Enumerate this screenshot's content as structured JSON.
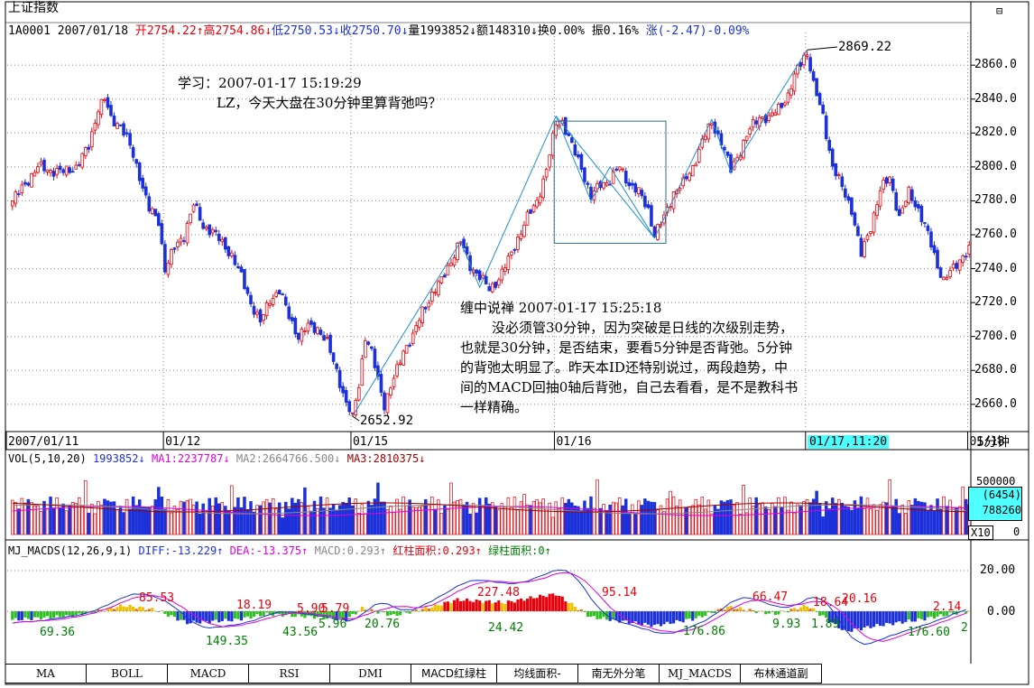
{
  "header": {
    "title": "上证指数",
    "code": "1A0001",
    "date": "2007/01/18",
    "open": "开2754.22↑",
    "high": "高2754.86↓",
    "low": "低2750.53↓",
    "close": "收2750.70↓",
    "volume": "量1993852↓",
    "amount": "额148310↓",
    "turnover": "换0.00%",
    "amplitude": "振0.16%",
    "change": "涨(-2.47)-0.09%"
  },
  "price_axis": [
    "2860.0",
    "2840.0",
    "2820.0",
    "2800.0",
    "2780.0",
    "2760.0",
    "2740.0",
    "2720.0",
    "2700.0",
    "2680.0",
    "2660.0"
  ],
  "date_axis": [
    "2007/01/11",
    "01/12",
    "01/15",
    "01/16",
    "01/17",
    "01/17,11:20",
    "01/18"
  ],
  "period_label": "5分钟",
  "annotations": {
    "max_label": "2869.22",
    "min_label": "2652.92",
    "question_line1": "学习：2007-01-17 15:19:29",
    "question_line2": "LZ，今天大盘在30分钟里算背弛吗？",
    "answer_title": "缠中说禅 2007-01-17 15:25:18",
    "answer_line1": "没必须管30分钟，因为突破是日线的次级别走势，",
    "answer_line2": "也就是30分钟，是否结束，要看5分钟是否背弛。5分钟",
    "answer_line3": "的背弛太明显了。昨天本ID还特别说过，两段趋势，中",
    "answer_line4": "间的MACD回抽0轴后背弛，自己去看看，是不是教科书",
    "answer_line5": "一样精确。"
  },
  "vol_panel": {
    "label": "VOL(5,10,20)",
    "vol": "1993852↓",
    "ma1": "MA1:2237787↓",
    "ma2": "MA2:2664766.500↓",
    "ma3": "MA3:2810375↓",
    "axis_top": "500000",
    "axis_box1": "(6454)",
    "axis_box2": "788260",
    "axis_box3": "X10",
    "axis_zero": "0"
  },
  "macd_panel": {
    "label": "MJ_MACDS(12,26,9,1)",
    "diff": "DIFF:-13.229↑",
    "dea": "DEA:-13.375↑",
    "macd": "MACD:0.293↑",
    "red_area": "红柱面积:0.293↑",
    "green_area": "绿柱面积:0↑",
    "axis_top": "20.00",
    "axis_zero": "0.00",
    "red_labels": [
      "85.53",
      "18.19",
      "5.90",
      "5.79",
      "227.48",
      "95.14",
      "66.47",
      "18.64",
      "20.16",
      "2.14"
    ],
    "green_labels": [
      "69.36",
      "149.35",
      "43.56",
      "5.96",
      "20.76",
      "24.42",
      "176.86",
      "9.93",
      "1.89",
      "176.60",
      "2"
    ]
  },
  "tabs": [
    "MA",
    "BOLL",
    "MACD",
    "RSI",
    "DMI",
    "MACD红绿柱",
    "均线面积-",
    "南无外分笔",
    "MJ_MACDS",
    "布林通道副"
  ],
  "chart_data": {
    "type": "candlestick",
    "title": "上证指数",
    "xlabel": "",
    "ylabel": "",
    "ylim": [
      2645,
      2875
    ],
    "day_labels": [
      "2007/01/11",
      "01/12",
      "01/15",
      "01/16",
      "01/17",
      "01/18"
    ],
    "close_path": [
      [
        0,
        2780
      ],
      [
        4,
        2790
      ],
      [
        8,
        2800
      ],
      [
        12,
        2798
      ],
      [
        16,
        2797
      ],
      [
        20,
        2800
      ],
      [
        24,
        2812
      ],
      [
        27,
        2835
      ],
      [
        29,
        2840
      ],
      [
        31,
        2828
      ],
      [
        34,
        2825
      ],
      [
        37,
        2812
      ],
      [
        40,
        2795
      ],
      [
        43,
        2775
      ],
      [
        46,
        2768
      ],
      [
        48,
        2740
      ],
      [
        51,
        2752
      ],
      [
        54,
        2760
      ],
      [
        57,
        2778
      ],
      [
        60,
        2765
      ],
      [
        63,
        2762
      ],
      [
        66,
        2755
      ],
      [
        69,
        2748
      ],
      [
        72,
        2735
      ],
      [
        75,
        2720
      ],
      [
        78,
        2708
      ],
      [
        81,
        2722
      ],
      [
        84,
        2727
      ],
      [
        87,
        2712
      ],
      [
        90,
        2700
      ],
      [
        93,
        2706
      ],
      [
        96,
        2705
      ],
      [
        99,
        2696
      ],
      [
        102,
        2680
      ],
      [
        105,
        2660
      ],
      [
        107,
        2653
      ],
      [
        109,
        2672
      ],
      [
        111,
        2700
      ],
      [
        113,
        2690
      ],
      [
        115,
        2675
      ],
      [
        117,
        2660
      ],
      [
        119,
        2670
      ],
      [
        121,
        2680
      ],
      [
        123,
        2692
      ],
      [
        126,
        2700
      ],
      [
        129,
        2715
      ],
      [
        132,
        2725
      ],
      [
        135,
        2733
      ],
      [
        138,
        2745
      ],
      [
        141,
        2756
      ],
      [
        144,
        2742
      ],
      [
        147,
        2735
      ],
      [
        150,
        2728
      ],
      [
        153,
        2734
      ],
      [
        156,
        2745
      ],
      [
        159,
        2758
      ],
      [
        162,
        2770
      ],
      [
        165,
        2780
      ],
      [
        168,
        2798
      ],
      [
        171,
        2826
      ],
      [
        173,
        2827
      ],
      [
        176,
        2812
      ],
      [
        179,
        2800
      ],
      [
        182,
        2782
      ],
      [
        185,
        2790
      ],
      [
        188,
        2792
      ],
      [
        191,
        2800
      ],
      [
        194,
        2790
      ],
      [
        197,
        2785
      ],
      [
        200,
        2775
      ],
      [
        202,
        2760
      ],
      [
        205,
        2770
      ],
      [
        208,
        2785
      ],
      [
        211,
        2790
      ],
      [
        214,
        2800
      ],
      [
        217,
        2815
      ],
      [
        220,
        2826
      ],
      [
        223,
        2815
      ],
      [
        226,
        2798
      ],
      [
        229,
        2810
      ],
      [
        232,
        2822
      ],
      [
        235,
        2830
      ],
      [
        238,
        2828
      ],
      [
        241,
        2835
      ],
      [
        244,
        2842
      ],
      [
        247,
        2858
      ],
      [
        250,
        2869
      ],
      [
        252,
        2848
      ],
      [
        255,
        2830
      ],
      [
        258,
        2800
      ],
      [
        261,
        2788
      ],
      [
        264,
        2775
      ],
      [
        267,
        2748
      ],
      [
        270,
        2765
      ],
      [
        273,
        2786
      ],
      [
        276,
        2794
      ],
      [
        279,
        2770
      ],
      [
        282,
        2785
      ],
      [
        285,
        2775
      ],
      [
        288,
        2760
      ],
      [
        291,
        2742
      ],
      [
        293,
        2733
      ],
      [
        296,
        2740
      ],
      [
        299,
        2748
      ],
      [
        301,
        2751
      ]
    ],
    "series": [
      {
        "name": "VOL",
        "values": []
      },
      {
        "name": "MA1",
        "values": []
      },
      {
        "name": "MA2",
        "values": []
      },
      {
        "name": "MA3",
        "values": []
      },
      {
        "name": "DIFF",
        "values": []
      },
      {
        "name": "DEA",
        "values": []
      }
    ]
  }
}
